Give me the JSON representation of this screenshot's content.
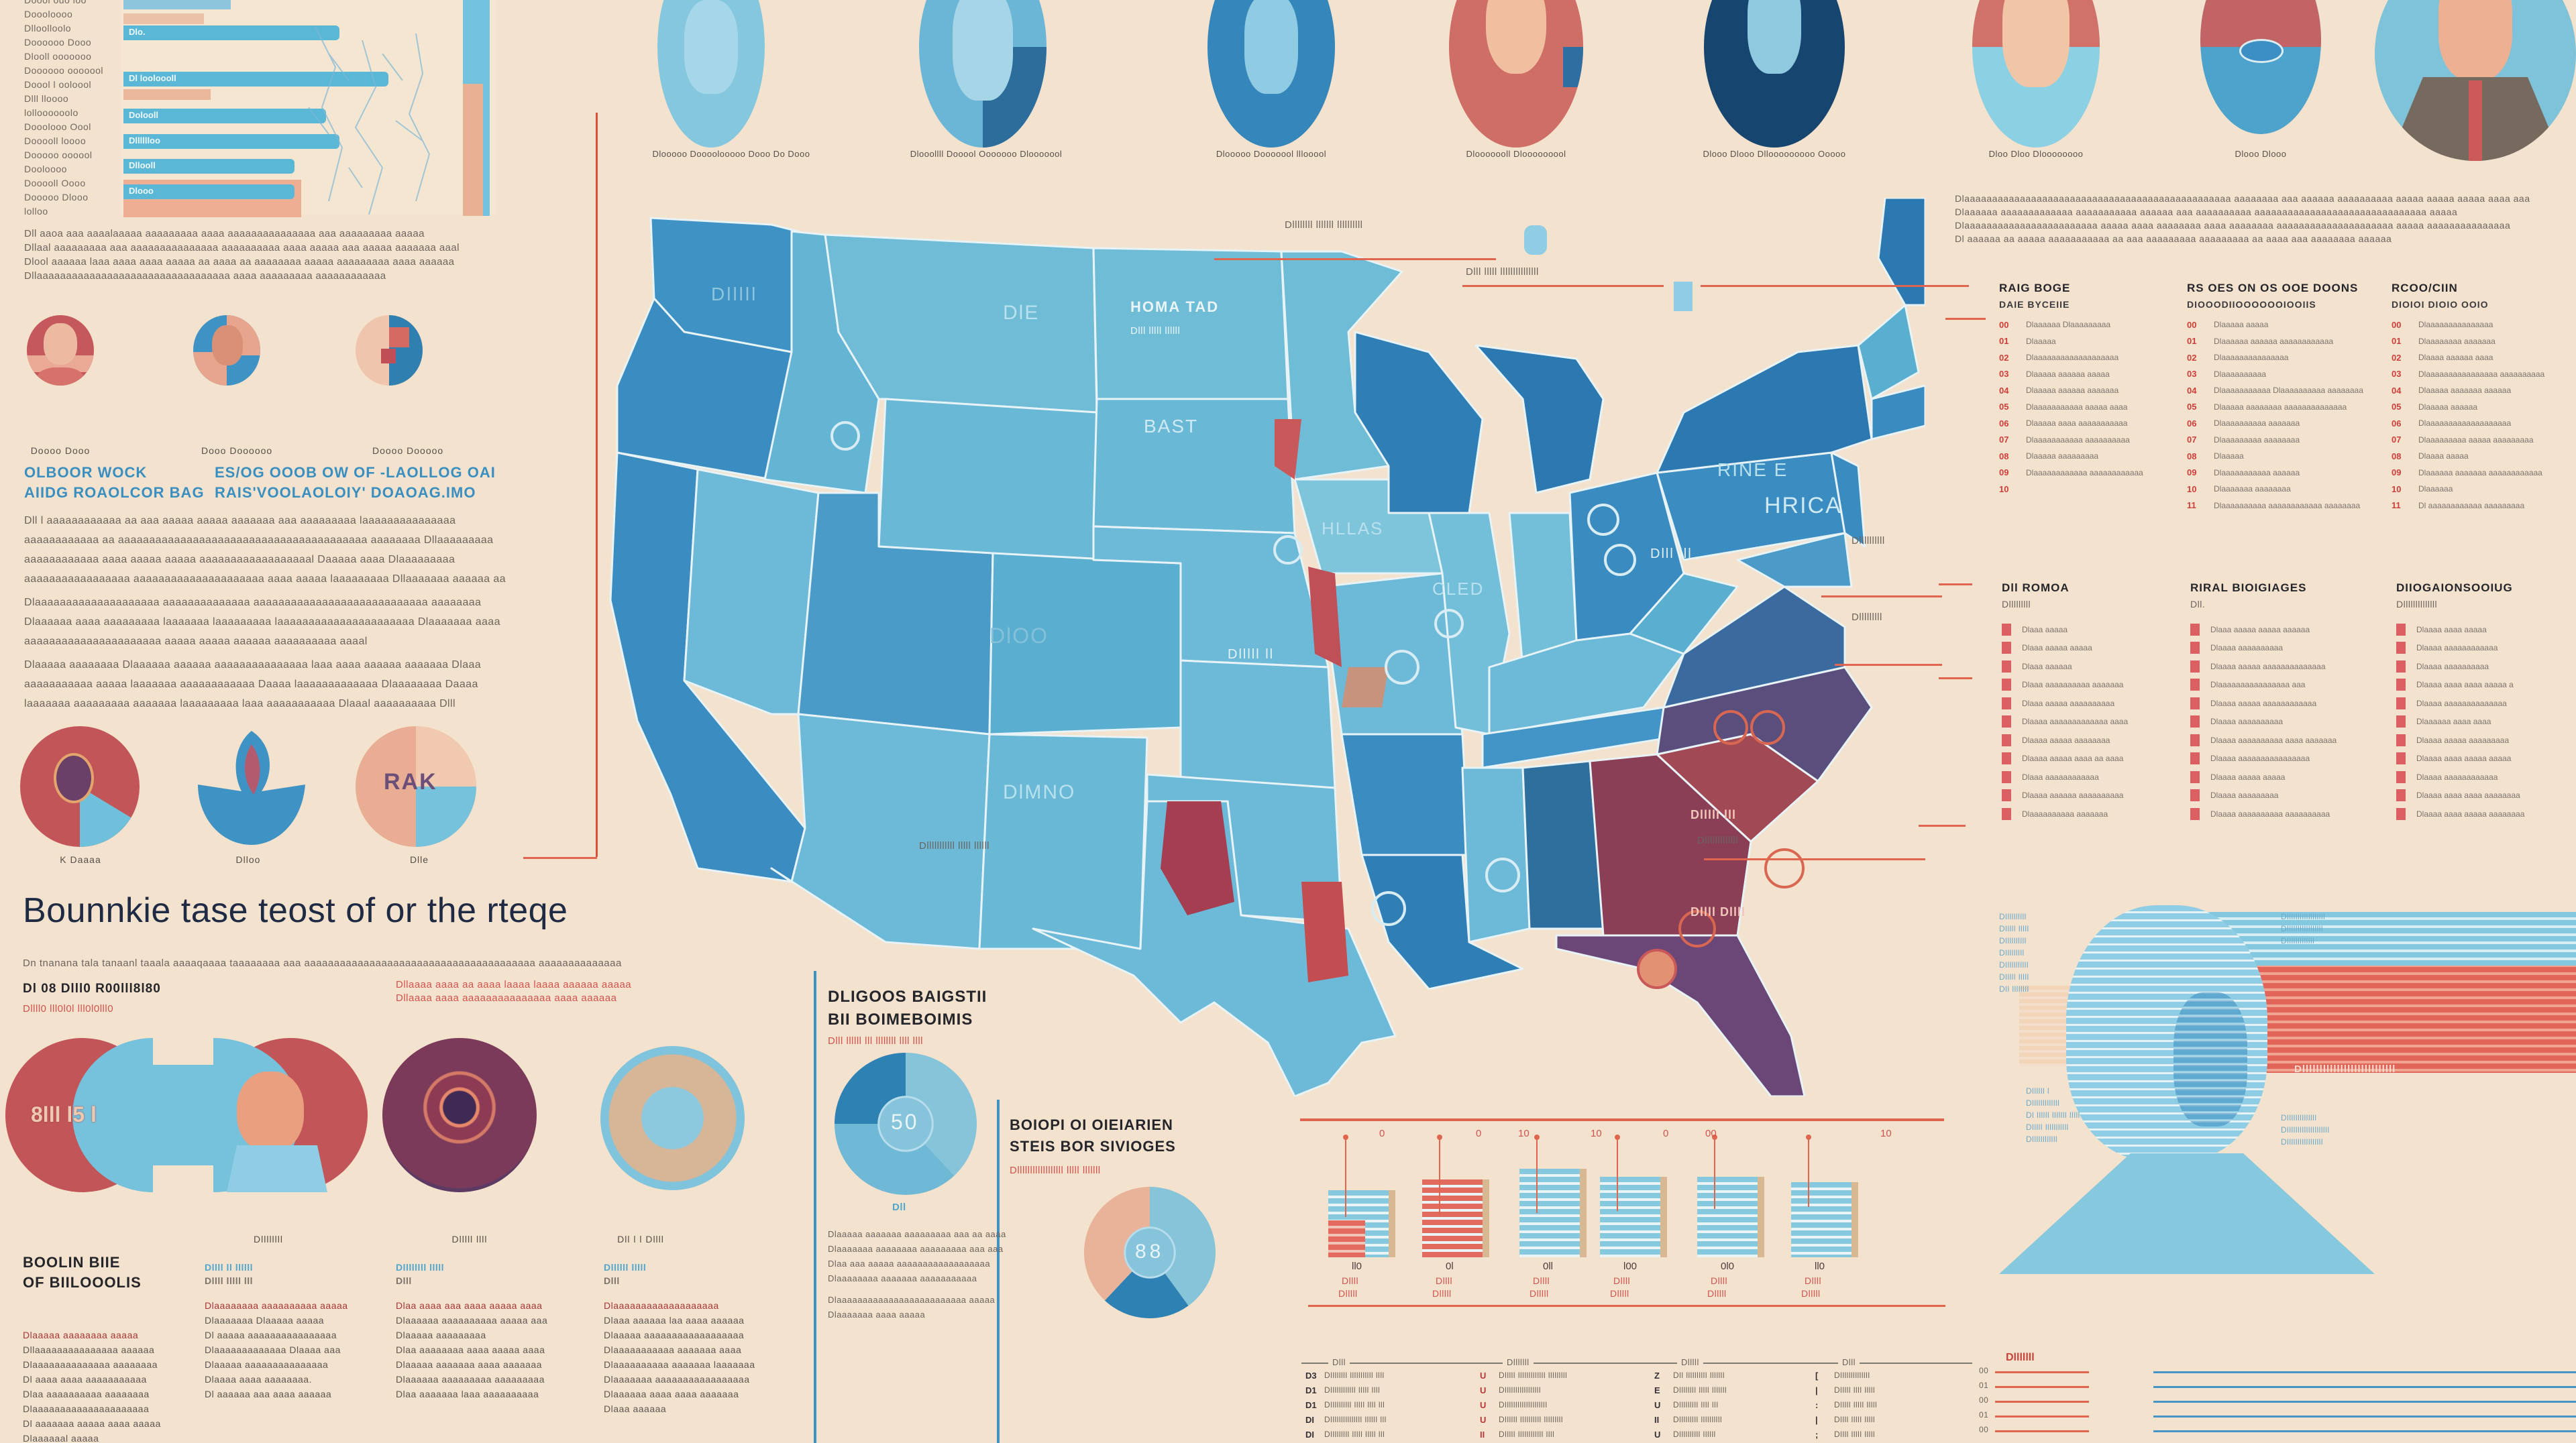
{
  "page": {
    "headline": "Bounnkie tase teost of or the rteqe",
    "headline_subline": "Dn  tnanana  tala tanaanl  taaala  aaaaqaaaa  taaaaaaaa  aaa  aaaaaaaaaaaaaaaaaaaaaaaaaaaaaaaaaaaaaaa  aaaaaaaaaaaaaa"
  },
  "colors": {
    "background": "#f3e2cd",
    "blue_light": "#72c0d9",
    "blue_mid": "#3f93c4",
    "blue_dark": "#1d5a8a",
    "red": "#c8585a",
    "red_deep": "#a8454e",
    "peach": "#e9b39c",
    "purple": "#6a4777",
    "accent_line": "#d9503f"
  },
  "top_left_chart": {
    "row_labels": [
      "Doool ouo loo",
      "Doooloooo",
      "Dlloolloolo",
      "Doooooo Dooo",
      "Dlooll ooooooo",
      "Doooooo ooooool",
      "Doool l ooloool",
      "Dlll lloooo",
      "lolloooooolo",
      "Dooolooo Oool",
      "Dooooll loooo",
      "Dooooo oooool",
      "Dooloooo",
      "Dooooll Oooo",
      "Dooooo Dlooo",
      "lolloo"
    ],
    "bars": [
      {
        "label": "Dlo.",
        "value": 0.62
      },
      {
        "label": "Dl looloooll",
        "value": 0.76
      },
      {
        "label": "Dolooll",
        "value": 0.58
      },
      {
        "label": "Dlllllloo",
        "value": 0.62
      },
      {
        "label": "Dllooll",
        "value": 0.49
      },
      {
        "label": "Dlooo",
        "value": 0.49
      }
    ],
    "caption_lines": [
      "Dll aaoa aaa  aaaalaaaaa  aaaaaaaaa aaaa  aaaaaaaaaaaaaaa aaa  aaaaaaaaa aaaaa",
      "Dllaal aaaaaaaaa  aaa  aaaaaaaaaaaaaaa  aaaaaaaaaa aaaa aaaaa aaa aaaaa  aaaaaaa aaal",
      "Dlool aaaaaa  laaa aaaa  aaaa aaaaa aa  aaaa aa  aaaaaaaa  aaaaa  aaaaaaaaa  aaaa aaaaaa",
      "Dllaaaaaaaaaaaaaaaaaaaaaaaaaaaaaaaaa aaaa  aaaaaaaaa  aaaaaaaaaaaa"
    ]
  },
  "left_middle": {
    "portrait_captions": [
      "Doooo Dooo",
      "Dooo Doooooo",
      "Doooo Dooooo"
    ],
    "headings": [
      {
        "line1": "OLBOOR WOCK",
        "line2": "AIIDG ROAOLCOR BAG"
      },
      {
        "line1": "ES/OG OOOB OW OF  -LAOLLOG OAI",
        "line2": "RAIS'VOOLAOLOIY' DOAOAG.IMO"
      }
    ],
    "paragraphs": [
      "Dll l  aaaaaaaaaaaa  aa  aaa  aaaaa  aaaaa  aaaaaaa  aaa aaaaaaaaa  laaaaaaaaaaaaaaa aaaaaaaaaaaa aa aaaaaaaaaaaaaaaaaaaaaaaaaaaaaaaaaaaaaaaa  aaaaaaaa Dllaaaaaaaaa aaaaaaaaaaaa  aaaa  aaaaa  aaaaa  aaaaaaaaaaaaaaaaaal  Daaaaa aaaa  Dlaaaaaaaaa aaaaaaaaaaaaaaaaa  aaaaaaaaaaaaaaaaaaaaa  aaaa  aaaaa  laaaaaaaaa  Dllaaaaaaa aaaaaa aa aaaaaaaaaaaaaaaaaaa aaaaaaaa aaaa aaaa  aaaaaaaa  laaaaa aaaaall",
      "Dlaaaaaaaaaaaaaaaaaaaa aaaaaaaaaaaaaa  aaaaaaaaaaaaaaaaaaaaaaaaaaaa  aaaaaaaa Dlaaaaaa aaaa aaaaaaaaa  laaaaaaa  laaaaaaaaa  laaaaaaaaaaaaaaaaaaaaaa Dlaaaaaaa aaaa aaaaaaaaaaaaaaaaaaaaaa aaaaa  aaaaa aaaaaa aaaaaaaaaa aaaal",
      "Dlaaaaa aaaaaaaa  Dlaaaaaa  aaaaaa  aaaaaaaaaaaaaaa  laaa  aaaa  aaaaaa  aaaaaaa Dlaaa  aaaaaaaaaaa  aaaaa  laaaaaaa  aaaaaaaaaaaa  Daaaa  laaaaaaaaaaaaa Dlaaaaaaaa Daaaa  laaaaaaa aaaaaaaaa  aaaaaaa  laaaaaaaaa  laaa  aaaaaaaaaaa Dlaaal  aaaaaaaaaa  Dlll  aaaaaaaaa  laaaa  laaaaaaaaaaaaa  aaaa"
    ],
    "pie_captions": [
      "K Daaaa",
      "Dlloo",
      "Dlle"
    ],
    "pie_center_label": "RAK"
  },
  "bottom_left": {
    "sub_labels": [
      "Dl 08 Dlll0 R00lll8l80",
      "Dllll0 lll0l0l lll0l0lll0"
    ],
    "red_notes": [
      "Dllaaaa aaaa aa aaaa laaaa laaaa aaaaaa aaaaa",
      "Dllaaaa aaaa aaaaaaaaaaaaaaa  aaaa aaaaaa"
    ],
    "big_circle_value": "8lll l5 l",
    "circle_captions": [
      "Dllllllll",
      "Dlllll llll",
      "Dll l l Dllll"
    ],
    "section_title": [
      "BOOLIN BIIE",
      "OF BIILOOOLIS"
    ],
    "columns": [
      {
        "heading": [
          "Dlllllll ll l",
          "Dlllll"
        ],
        "lines": [
          "Dlaaaaa aaaaaaaa aaaaa",
          "Dllaaaaaaaaaaaaaaa aaaaaa",
          "Dlaaaaaaaaaaaaaa aaaaaaaa",
          "Dl aaaa aaaa  aaaaaaaaaaa",
          "Dlaa aaaaaaaaaa aaaaaaaa",
          "Dlaaaaaaaaaaaaaaaaaaaaa",
          "Dl aaaaaaa aaaaa aaaa aaaaa",
          "Dlaaaaaal aaaaa"
        ]
      },
      {
        "heading": [
          "Dllll ll llllll",
          "Dllll lllll lll"
        ],
        "lines": [
          "Dlaaaaaaaa  aaaaaaaaaa aaaaa",
          "Dlaaaaaaa  Dlaaaaa aaaaa",
          "Dl aaaaa  aaaaaaaaaaaaaaaa",
          "Dlaaaaaaaaaaaaa Dlaaaa aaa",
          "Dlaaaaa  aaaaaaaaaaaaaaa",
          "Dlaaaa aaaa aaaaaaaa.",
          "Dl aaaaaa aaa aaaa aaaaaa"
        ]
      },
      {
        "heading": [
          "Dllllllll lllll",
          "Dlll"
        ],
        "lines": [
          "Dlaa aaaa  aaa aaaa aaaaa aaaa",
          "Dlaaaaaa aaaaaaaaaa aaaaa aaa",
          "Dlaaaaa  aaaaaaaaa",
          "Dlaa aaaaaaaa aaaa aaaaa aaaa",
          "Dlaaaaa aaaaaaa aaaa aaaaaaa",
          "Dlaaaaaa aaaaaaaaa aaaaaaaaa",
          "Dlaa aaaaaaa laaa aaaaaaaaaa"
        ]
      },
      {
        "heading": [
          "Dllllll lllll",
          "Dlll"
        ],
        "lines": [
          "Dlaaaaaaaaaaaaaaaaaaa",
          "Dlaaa aaaaaa laa aaaa aaaaaa",
          "Dlaaaaa  aaaaaaaaaaaaaaaaaa",
          "Dlaaaaaaaaaaa aaaaaaa aaaa",
          "Dlaaaaaaaaaa aaaaaaa laaaaaaa",
          "Dlaaaaaaa  aaaaaaaaaaaaaaaaa",
          "Dlaaaaaa aaaa aaaa aaaaaaa",
          "Dlaaa aaaaaa"
        ]
      }
    ]
  },
  "top_portraits": {
    "captions": [
      "Dlooooo Doooolooooo Dooo Do Dooo",
      "Dlooollll Dooool Ooooooo Dlooooool",
      "Dlooooo Dooooool lllooool",
      "Dlooooooll Dlooooooool",
      "Dlooo Dlooo Dllooooooooo Ooooo",
      "Dloo Dloo Dloooooooo",
      "Dlooo Dlooo"
    ]
  },
  "map": {
    "state_labels": [
      "Dlllll",
      "DlE",
      "HOMA TAD",
      "Dlll lllll llllll",
      "BAST",
      "HLLAS",
      "CLED",
      "DlOO",
      "Dlllll ll",
      "DlMNO",
      "RINE E",
      "HRICA",
      "Dlll lll",
      "Dllll Dllll",
      "Dlllll lll"
    ],
    "callouts": [
      "Dllllllll lllllll llllllllll",
      "Dlll lllll lllllllllllllll",
      "Dlllllllll",
      "Dllllllllll",
      "Dlllllllllllll",
      "Dlllllllllll lllll llllll"
    ]
  },
  "right_column": {
    "intro_lines": [
      "Dlaaaaaaaaaaaaaaaaaaaaaaaaaaaaaaaaaaaaaaaaaaaaaaaa  aaaaaaaa  aaa  aaaaaa aaaaaaaaaa aaaaa aaaaa aaaaa aaaa aaa",
      "Dlaaaaaa aaaaaaaaaaaaa  aaaaaaaaaaa  aaaaaa  aaa  aaaaaaaaaa  aaaaaaaaaaaaaaaaaaaaaaaaaaaaaaa aaaaa",
      "Dlaaaaaaaaaaaaaaaaaaaaaaaa  aaaaa  aaaa  aaaaaaaa aaaa aaaaaaaa aaaaaaaaaaaaaaaaaaaaa aaaaa  aaaaaaaaaaaaaaa",
      "Dl aaaaaa  aa aaaaa aaaaaaaaaaa aa aaa  aaaaaaaaa  aaaaaaaaa  aa aaaa aaa aaaaaaaa aaaaaa"
    ],
    "numbered_lists": [
      {
        "title": "RAIG BOGE",
        "subtitle": "DAIE BYCEIIE",
        "items": [
          "Dlaaaaaa Dlaaaaaaaaa",
          "Dlaaaaa",
          "Dlaaaaaaaaaaaaaaaaaaa",
          "Dlaaaaa aaaaaa aaaaa",
          "Dlaaaaa aaaaaa aaaaaaa",
          "Dlaaaaaaaaaaa aaaaa aaaa",
          "Dlaaaaa aaaa aaaaaaaaaaa",
          "Dlaaaaaaaaaaa aaaaaaaaaa",
          "Dlaaaaa aaaaaaaaa",
          "Dlaaaaaaaaaaaa aaaaaaaaaaaa",
          ""
        ],
        "nums": [
          "00",
          "01",
          "02",
          "03",
          "04",
          "05",
          "06",
          "07",
          "08",
          "09",
          "10"
        ]
      },
      {
        "title": "RS OES ON OS OOE DOONS",
        "subtitle": "DIOOODIIOOOOOOIOOIIS",
        "items": [
          "Dlaaaaa aaaaa",
          "Dlaaaaaa aaaaaa aaaaaaaaaaaa",
          "Dlaaaaaaaaaaaaaaa",
          "Dlaaaaaaaaaa",
          "Dlaaaaaaaaaaa Dlaaaaaaaaaa aaaaaaaa",
          "Dlaaaaa aaaaaaaa aaaaaaaaaaaaaa",
          "Dlaaaaaaaaaa aaaaaaa",
          "Dlaaaaaaaaa aaaaaaaa",
          "Dlaaaaa",
          "Dlaaaaaaaaaaa aaaaaa",
          "Dlaaaaaaa aaaaaaaa",
          "Dlaaaaaaaaaa aaaaaaaaaaaa aaaaaaaa"
        ],
        "nums": [
          "00",
          "01",
          "02",
          "03",
          "04",
          "05",
          "06",
          "07",
          "08",
          "09",
          "10",
          "11"
        ]
      },
      {
        "title": "RCOO/CIIN",
        "subtitle": "DIOIOI DIOIO OOIO",
        "items": [
          "Dlaaaaaaaaaaaaaaa",
          "Dlaaaaaaaa aaaaaaa",
          "Dlaaaa aaaaaa aaaa",
          "Dlaaaaaaaaaaaaaaaa aaaaaaaaaa",
          "Dlaaaaa aaaaaaa aaaaaa",
          "Dlaaaaa aaaaaa",
          "Dlaaaaaaaaaaaaaaaaaaa",
          "Dlaaaaaaaaa aaaaa aaaaaaaaa",
          "Dlaaaa aaaaa",
          "Dlaaaaaa aaaaaaa aaaaaaaaaaaa",
          "Dlaaaaaa",
          "Dl aaaaaaaaaaaa aaaaaaaaa"
        ],
        "nums": [
          "00",
          "01",
          "02",
          "03",
          "04",
          "05",
          "06",
          "07",
          "08",
          "09",
          "10",
          "11"
        ]
      }
    ],
    "checkbox_lists": [
      {
        "title": "Dll ROMOA",
        "subtitle": "Dlllllllll",
        "items": [
          "Dlaaa aaaaa",
          "Dlaaa aaaaa aaaaa",
          "Dlaaa aaaaaa",
          "Dlaaa aaaaaaaaaa aaaaaaa",
          "Dlaaa aaaaa aaaaaaaaaa",
          "Dlaaaa aaaaaaaaaaaaa aaaa",
          "Dlaaaa aaaaa aaaaaaaa",
          "Dlaaaa aaaaa aaaa aa aaaa",
          "Dlaaa aaaaaaaaaaaa",
          "Dlaaaa aaaaaa aaaaaaaaaa",
          "Dlaaaaaaaaaa aaaaaaa"
        ]
      },
      {
        "title": "RIRAL BIOIGIAGES",
        "subtitle": "Dll.",
        "items": [
          "Dlaaa aaaaa aaaaa aaaaaa",
          "Dlaaaa aaaaaaaaaa",
          "Dlaaaa aaaaa aaaaaaaaaaaaaa",
          "Dlaaaaaaaaaaaaaaaa aaa",
          "Dlaaaa aaaaa aaaaaaaaaaaa",
          "Dlaaaa aaaaaaaaaa",
          "Dlaaaa aaaaaaaaaa aaaa aaaaaaa",
          "Dlaaaa aaaaaaaaaaaaaaaa",
          "Dlaaaa aaaaa aaaaa",
          "Dlaaaa aaaaaaaaa",
          "Dlaaaa aaaaaaaaaa aaaaaaaaaa"
        ]
      },
      {
        "title": "DIIOGAIONSOOIUG",
        "subtitle": "Dllllllllllllll",
        "items": [
          "Dlaaaa aaaa aaaaa",
          "Dlaaaa aaaaaaaaaaaa",
          "Dlaaaa aaaaaaaaaa",
          "Dlaaaa aaaa aaaa aaaaa a",
          "Dlaaaa aaaaaaaaaaaaaa",
          "Dlaaaaaa aaaa aaaa",
          "Dlaaaa aaaaa aaaaaaaaa",
          "Dlaaaa aaaa aaaaa aaaaa",
          "Dlaaaa aaaaaaaaaaaa",
          "Dlaaaa aaaa aaaa aaaaaaaa",
          "Dlaaaa aaaa aaaaa aaaaaaaa"
        ]
      }
    ]
  },
  "mid_bottom": {
    "left_title": [
      "DLIGOOS BAIGSTII",
      "BII BOIMEBOIMIS"
    ],
    "left_subtitle": "Dlll llllll lll llllllll llll llll",
    "pie1_label": "50",
    "pie1_caption": "Dll",
    "left_paragraph": [
      "Dlaaaaa aaaaaaa  aaaaaaaaa aaa  aa aaaa",
      "Dlaaaaaaa aaaaaaaa  aaaaaaaaa  aaa  aaa",
      "Dlaa  aaa  aaaaa  aaaaaaaaaaaaaaaaaa",
      "Dlaaaaaaaa  aaaaaaa  aaaaaaaaaaa",
      "Dlaaaaaaaaaaaaaaaaaaaaaaaaa  aaaaa",
      "Dlaaaaaaa aaaa aaaaa"
    ],
    "right_title": [
      "BOIOPI OI OIEIARIEN",
      "STEIS BOR SIVIOGES"
    ],
    "right_subtitle": "Dllllllllllllllllll lllll lllllll",
    "pie2_label": "88",
    "pie1_slices": [
      {
        "label": "light",
        "value": 38
      },
      {
        "label": "mid",
        "value": 37
      },
      {
        "label": "dark",
        "value": 25
      }
    ],
    "pie2_slices": [
      {
        "label": "light",
        "value": 40
      },
      {
        "label": "dark",
        "value": 22
      },
      {
        "label": "peach",
        "value": 38
      }
    ]
  },
  "building_chart": {
    "top_labels": [
      "0",
      "0",
      "10",
      "10",
      "0",
      "00",
      "10"
    ],
    "items": [
      {
        "value_label": "ll0",
        "name": [
          "Dllll",
          "Dlllll"
        ],
        "height": 0.7
      },
      {
        "value_label": "0l",
        "name": [
          "Dllll",
          "Dlllll"
        ],
        "height": 0.78
      },
      {
        "value_label": "0ll",
        "name": [
          "Dllll",
          "Dlllll"
        ],
        "height": 0.86
      },
      {
        "value_label": "l00",
        "name": [
          "Dllll",
          "Dlllll"
        ],
        "height": 0.8
      },
      {
        "value_label": "0l0",
        "name": [
          "Dllll",
          "Dlllll"
        ],
        "height": 0.8
      },
      {
        "value_label": "ll0",
        "name": [
          "Dllll",
          "Dlllll"
        ],
        "height": 0.76
      }
    ]
  },
  "right_bottom": {
    "left_labels": [
      "Dllllllllll",
      "Dlllll lllll",
      "Dllllllllll",
      "Dlllllllll",
      "Dlllllllllll",
      "Dlllll lllll",
      "Dll llllllll",
      "Dllllll l",
      "Dlllllllllllll",
      "Dl llllll lllllll lllll",
      "Dlllll lllllllllll",
      "Dllllllllllll"
    ],
    "right_labels": [
      "Dllllllllllllllllll",
      "Dlllllllllllllllll",
      "Dlllllllllllll",
      "Dllllllllllllll",
      "Dllllllllllllllllllll",
      "Dlllllllllllllllll"
    ],
    "red_banner": "Dlllllllllllllllllllllllllll",
    "axis_title": "Dlllllll",
    "axis_ticks": [
      "00",
      "01",
      "00",
      "01",
      "00"
    ]
  },
  "bottom_table": {
    "headers": [
      "Dlll",
      "Dlllllll",
      "Dlllll",
      "Dlll"
    ],
    "rows": [
      [
        "Dllllllll lllllllllll llll",
        "Dlllll lllllllllllll lllllllll",
        "Dll llllllllll lllllll",
        "Dllllllllllllll"
      ],
      [
        "Dllllllllllll lllll llll",
        "Dlllllllllllllllll",
        "Dllllllll lllll lllllll",
        "Dlllll llll lllll"
      ],
      [
        "Dllllllllll lllll llll lll",
        "Dllllllllllllllllllll",
        "Dlllllllll llll lll",
        "Dlllll lllll lllll"
      ],
      [
        "Dlllllllllllllll llllll lll",
        "Dllllll llllllllll lllllllll",
        "Dlllllllll llllllllll",
        "Dllll lllll lllll"
      ],
      [
        "Dlllllllll lllll lllll lll",
        "Dlllll llllllllllll llll",
        "Dllllllllll llllll",
        "Dllll lllll lllll"
      ]
    ],
    "row_keys": [
      [
        "D3",
        "U",
        "Z",
        "["
      ],
      [
        "D1",
        "U",
        "E",
        "|"
      ],
      [
        "D1",
        "U",
        "U",
        ":"
      ],
      [
        "DI",
        "U",
        "II",
        "|"
      ],
      [
        "DI",
        "II",
        "U",
        ";"
      ]
    ]
  }
}
